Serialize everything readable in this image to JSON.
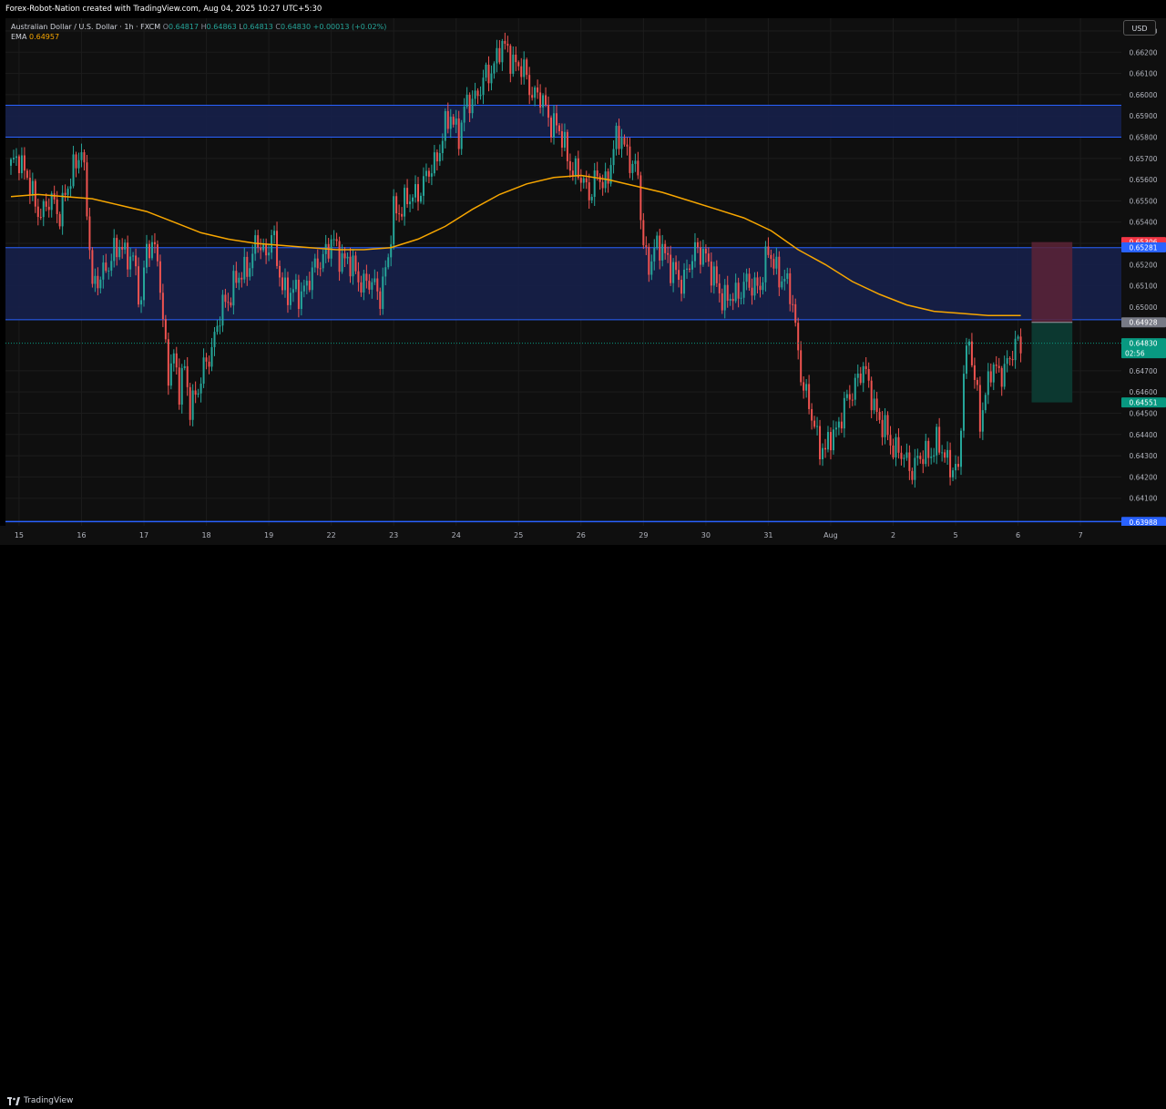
{
  "header": {
    "watermark": "Forex-Robot-Nation created with TradingView.com, Aug 04, 2025 10:27 UTC+5:30"
  },
  "legend": {
    "symbol": "Australian Dollar / U.S. Dollar · 1h · FXCM",
    "o_label": "O",
    "o_value": "0.64817",
    "h_label": "H",
    "h_value": "0.64863",
    "l_label": "L",
    "l_value": "0.64813",
    "c_label": "C",
    "c_value": "0.64830",
    "change": "+0.00013 (+0.02%)",
    "ema_label": "EMA",
    "ema_value": "0.64957"
  },
  "currency_button": "USD",
  "footer": {
    "brand": "TradingView"
  },
  "colors": {
    "up": "#26a69a",
    "down": "#ef5350",
    "ema": "#f7a600",
    "zone_line": "#2962ff",
    "zone_fill": "#16204a",
    "stop": "#5c2336",
    "target": "#0c3d34"
  },
  "chart_data": {
    "type": "candlestick",
    "title": "",
    "ylim": [
      0.6397,
      0.6636
    ],
    "y_ticks": [
      "0.66300",
      "0.66200",
      "0.66100",
      "0.66000",
      "0.65900",
      "0.65800",
      "0.65700",
      "0.65600",
      "0.65500",
      "0.65400",
      "0.65300",
      "0.65200",
      "0.65100",
      "0.65000",
      "0.64700",
      "0.64600",
      "0.64500",
      "0.64400",
      "0.64300",
      "0.64200",
      "0.64100"
    ],
    "x_ticks": [
      {
        "label": "15",
        "index": 3
      },
      {
        "label": "16",
        "index": 26
      },
      {
        "label": "17",
        "index": 49
      },
      {
        "label": "18",
        "index": 72
      },
      {
        "label": "19",
        "index": 95
      },
      {
        "label": "22",
        "index": 118
      },
      {
        "label": "23",
        "index": 141
      },
      {
        "label": "24",
        "index": 164
      },
      {
        "label": "25",
        "index": 187
      },
      {
        "label": "26",
        "index": 210
      },
      {
        "label": "29",
        "index": 233
      },
      {
        "label": "30",
        "index": 256
      },
      {
        "label": "31",
        "index": 279
      },
      {
        "label": "Aug",
        "index": 302
      },
      {
        "label": "2",
        "index": 325
      },
      {
        "label": "5",
        "index": 348
      },
      {
        "label": "6",
        "index": 371
      },
      {
        "label": "7",
        "index": 394
      }
    ],
    "close_path": [
      [
        0,
        0.6565
      ],
      [
        3,
        0.6572
      ],
      [
        6,
        0.656
      ],
      [
        9,
        0.6548
      ],
      [
        12,
        0.6545
      ],
      [
        15,
        0.655
      ],
      [
        18,
        0.6545
      ],
      [
        21,
        0.6555
      ],
      [
        24,
        0.657
      ],
      [
        26,
        0.6575
      ],
      [
        28,
        0.6545
      ],
      [
        30,
        0.651
      ],
      [
        32,
        0.6515
      ],
      [
        35,
        0.6515
      ],
      [
        38,
        0.6528
      ],
      [
        40,
        0.653
      ],
      [
        42,
        0.6522
      ],
      [
        45,
        0.6525
      ],
      [
        48,
        0.65
      ],
      [
        50,
        0.6528
      ],
      [
        52,
        0.653
      ],
      [
        54,
        0.6525
      ],
      [
        56,
        0.649
      ],
      [
        58,
        0.647
      ],
      [
        60,
        0.6478
      ],
      [
        62,
        0.646
      ],
      [
        64,
        0.647
      ],
      [
        66,
        0.6455
      ],
      [
        69,
        0.646
      ],
      [
        72,
        0.6475
      ],
      [
        75,
        0.6485
      ],
      [
        78,
        0.65
      ],
      [
        82,
        0.651
      ],
      [
        85,
        0.6515
      ],
      [
        88,
        0.6522
      ],
      [
        91,
        0.653
      ],
      [
        94,
        0.6525
      ],
      [
        96,
        0.6536
      ],
      [
        98,
        0.652
      ],
      [
        100,
        0.651
      ],
      [
        103,
        0.6507
      ],
      [
        106,
        0.6505
      ],
      [
        109,
        0.6512
      ],
      [
        112,
        0.6517
      ],
      [
        115,
        0.6525
      ],
      [
        118,
        0.653
      ],
      [
        121,
        0.6525
      ],
      [
        124,
        0.6522
      ],
      [
        127,
        0.6515
      ],
      [
        130,
        0.6512
      ],
      [
        133,
        0.651
      ],
      [
        136,
        0.6507
      ],
      [
        139,
        0.6522
      ],
      [
        141,
        0.6545
      ],
      [
        144,
        0.6548
      ],
      [
        147,
        0.655
      ],
      [
        150,
        0.6555
      ],
      [
        153,
        0.656
      ],
      [
        156,
        0.6568
      ],
      [
        159,
        0.658
      ],
      [
        162,
        0.659
      ],
      [
        165,
        0.6582
      ],
      [
        168,
        0.6595
      ],
      [
        171,
        0.66
      ],
      [
        174,
        0.6605
      ],
      [
        177,
        0.6612
      ],
      [
        180,
        0.6622
      ],
      [
        183,
        0.662
      ],
      [
        186,
        0.6615
      ],
      [
        189,
        0.661
      ],
      [
        192,
        0.6602
      ],
      [
        195,
        0.6598
      ],
      [
        198,
        0.659
      ],
      [
        201,
        0.6585
      ],
      [
        204,
        0.6575
      ],
      [
        207,
        0.6565
      ],
      [
        210,
        0.656
      ],
      [
        213,
        0.6555
      ],
      [
        216,
        0.656
      ],
      [
        219,
        0.6558
      ],
      [
        222,
        0.6575
      ],
      [
        225,
        0.658
      ],
      [
        228,
        0.657
      ],
      [
        231,
        0.656
      ],
      [
        233,
        0.653
      ],
      [
        235,
        0.652
      ],
      [
        237,
        0.6525
      ],
      [
        240,
        0.653
      ],
      [
        243,
        0.6518
      ],
      [
        246,
        0.6512
      ],
      [
        249,
        0.6517
      ],
      [
        252,
        0.6525
      ],
      [
        255,
        0.6528
      ],
      [
        258,
        0.6515
      ],
      [
        261,
        0.6508
      ],
      [
        264,
        0.6503
      ],
      [
        267,
        0.6505
      ],
      [
        270,
        0.6512
      ],
      [
        273,
        0.6508
      ],
      [
        276,
        0.6512
      ],
      [
        279,
        0.6525
      ],
      [
        282,
        0.6518
      ],
      [
        285,
        0.6512
      ],
      [
        288,
        0.6502
      ],
      [
        290,
        0.648
      ],
      [
        292,
        0.646
      ],
      [
        294,
        0.6453
      ],
      [
        296,
        0.6445
      ],
      [
        298,
        0.6435
      ],
      [
        300,
        0.643
      ],
      [
        302,
        0.644
      ],
      [
        305,
        0.6445
      ],
      [
        308,
        0.6455
      ],
      [
        311,
        0.6465
      ],
      [
        314,
        0.647
      ],
      [
        317,
        0.646
      ],
      [
        320,
        0.6445
      ],
      [
        323,
        0.644
      ],
      [
        326,
        0.6433
      ],
      [
        329,
        0.6428
      ],
      [
        332,
        0.6425
      ],
      [
        335,
        0.6428
      ],
      [
        338,
        0.6432
      ],
      [
        341,
        0.6435
      ],
      [
        344,
        0.643
      ],
      [
        347,
        0.6425
      ],
      [
        349,
        0.642
      ],
      [
        351,
        0.647
      ],
      [
        353,
        0.6487
      ],
      [
        355,
        0.6465
      ],
      [
        357,
        0.6445
      ],
      [
        359,
        0.646
      ],
      [
        361,
        0.6472
      ],
      [
        364,
        0.6467
      ],
      [
        367,
        0.6475
      ],
      [
        370,
        0.648
      ],
      [
        372,
        0.6483
      ]
    ],
    "ema_path": [
      [
        0,
        0.6552
      ],
      [
        10,
        0.6553
      ],
      [
        20,
        0.6552
      ],
      [
        30,
        0.6551
      ],
      [
        40,
        0.6548
      ],
      [
        50,
        0.6545
      ],
      [
        60,
        0.654
      ],
      [
        70,
        0.6535
      ],
      [
        80,
        0.6532
      ],
      [
        90,
        0.653
      ],
      [
        100,
        0.6529
      ],
      [
        110,
        0.6528
      ],
      [
        120,
        0.6527
      ],
      [
        130,
        0.6527
      ],
      [
        140,
        0.6528
      ],
      [
        150,
        0.6532
      ],
      [
        160,
        0.6538
      ],
      [
        170,
        0.6546
      ],
      [
        180,
        0.6553
      ],
      [
        190,
        0.6558
      ],
      [
        200,
        0.6561
      ],
      [
        210,
        0.6562
      ],
      [
        220,
        0.656
      ],
      [
        230,
        0.6557
      ],
      [
        240,
        0.6554
      ],
      [
        250,
        0.655
      ],
      [
        260,
        0.6546
      ],
      [
        270,
        0.6542
      ],
      [
        280,
        0.6536
      ],
      [
        290,
        0.6527
      ],
      [
        300,
        0.652
      ],
      [
        310,
        0.6512
      ],
      [
        320,
        0.6506
      ],
      [
        330,
        0.6501
      ],
      [
        340,
        0.6498
      ],
      [
        350,
        0.6497
      ],
      [
        360,
        0.6496
      ],
      [
        372,
        0.6496
      ]
    ],
    "zones": [
      {
        "name": "upper-resistance-zone",
        "top": 0.6595,
        "bottom": 0.658
      },
      {
        "name": "middle-zone",
        "top": 0.6528,
        "bottom": 0.6494
      }
    ],
    "support_line": 0.6399,
    "position": {
      "entry": 0.64928,
      "stop": 0.65306,
      "target": 0.64551,
      "x_start": 376,
      "x_end": 391
    },
    "price_labels": [
      {
        "name": "stop-price-label",
        "value": "0.65306",
        "price": 0.65306,
        "color": "#f23645"
      },
      {
        "name": "zone-top-price-label",
        "value": "0.65281",
        "price": 0.65281,
        "color": "#2962ff"
      },
      {
        "name": "entry-price-label",
        "value": "0.64928",
        "price": 0.64928,
        "color": "#787b86"
      },
      {
        "name": "current-price-label",
        "value": "0.64830",
        "price": 0.6483,
        "color": "#089981",
        "sub": "02:56"
      },
      {
        "name": "target-price-label",
        "value": "0.64551",
        "price": 0.64551,
        "color": "#089981"
      },
      {
        "name": "support-price-label",
        "value": "0.63988",
        "price": 0.63988,
        "color": "#2962ff"
      }
    ]
  }
}
